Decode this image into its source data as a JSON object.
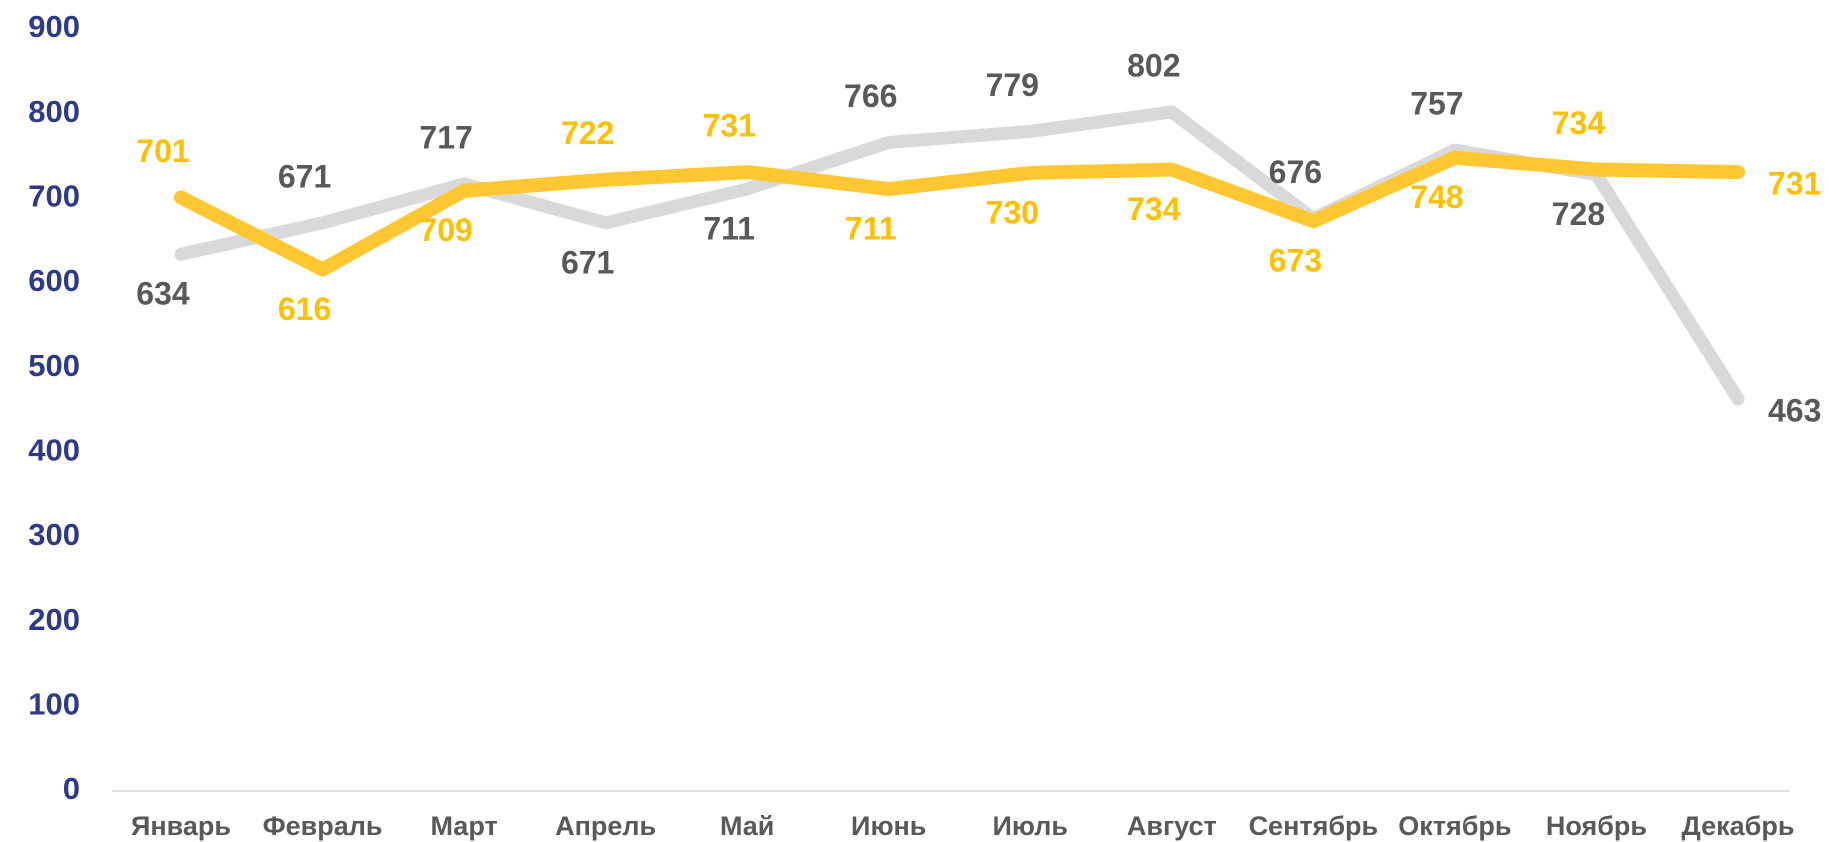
{
  "chart_data": {
    "type": "line",
    "categories": [
      "Январь",
      "Февраль",
      "Март",
      "Апрель",
      "Май",
      "Июнь",
      "Июль",
      "Август",
      "Сентябрь",
      "Октябрь",
      "Ноябрь",
      "Декабрь"
    ],
    "series": [
      {
        "color": "#d9d9d9",
        "values": [
          634,
          671,
          717,
          671,
          711,
          766,
          779,
          802,
          676,
          757,
          728,
          463
        ]
      },
      {
        "color": "#ffc832",
        "values": [
          701,
          616,
          709,
          722,
          731,
          711,
          730,
          734,
          673,
          748,
          734,
          731
        ]
      }
    ],
    "ylim": [
      0,
      900
    ],
    "yticks": [
      0,
      100,
      200,
      300,
      400,
      500,
      600,
      700,
      800,
      900
    ],
    "grid": false
  }
}
